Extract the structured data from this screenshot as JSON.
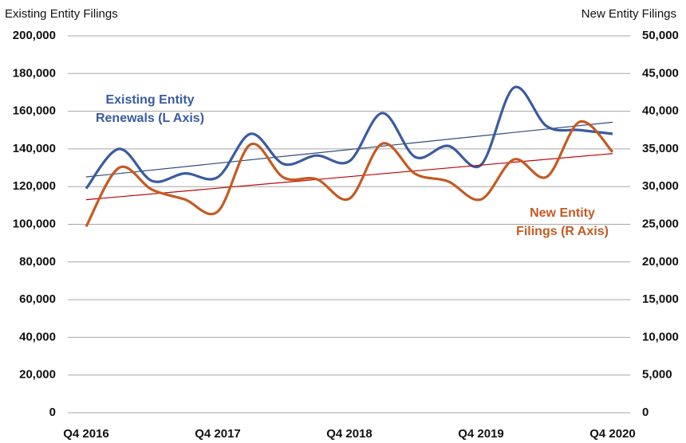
{
  "chart_data": {
    "type": "line",
    "y_axis_title": "Existing Entity Filings",
    "y2_axis_title": "New Entity Filings",
    "categories": [
      "Q4 2016",
      null,
      null,
      null,
      "Q4 2017",
      null,
      null,
      null,
      "Q4 2018",
      null,
      null,
      null,
      "Q4 2019",
      null,
      null,
      null,
      "Q4 2020"
    ],
    "ylim": [
      0,
      200000
    ],
    "yticks": [
      0,
      {
        "value": 20000,
        "label": "20,000"
      },
      {
        "value": 40000,
        "label": "40,000"
      },
      {
        "value": 60000,
        "label": "60,000"
      },
      {
        "value": 80000,
        "label": "80,000"
      },
      {
        "value": 100000,
        "label": "100,000"
      },
      {
        "value": 120000,
        "label": "120,000"
      },
      {
        "value": 140000,
        "label": "140,000"
      },
      {
        "value": 160000,
        "label": "160,000"
      },
      {
        "value": 180000,
        "label": "180,000"
      },
      {
        "value": 200000,
        "label": "200,000"
      }
    ],
    "y2lim": [
      0,
      50000
    ],
    "y2ticks": [
      0,
      {
        "value": 5000,
        "label": "5,000"
      },
      {
        "value": 10000,
        "label": "10,000"
      },
      {
        "value": 15000,
        "label": "15,000"
      },
      {
        "value": 20000,
        "label": "20,000"
      },
      {
        "value": 25000,
        "label": "25,000"
      },
      {
        "value": 30000,
        "label": "30,000"
      },
      {
        "value": 35000,
        "label": "35,000"
      },
      {
        "value": 40000,
        "label": "40,000"
      },
      {
        "value": 45000,
        "label": "45,000"
      },
      {
        "value": 50000,
        "label": "50,000"
      }
    ],
    "grid": true,
    "smooth": true,
    "series": [
      {
        "annotation": [
          "Existing Entity",
          "Renewals (L Axis)"
        ],
        "color": "#3a5ba0",
        "trend": true,
        "trend_color": "#2f4a80",
        "values": [
          119000,
          140000,
          123000,
          127000,
          125000,
          148000,
          132000,
          136500,
          133500,
          159000,
          135700,
          141600,
          131500,
          172500,
          152000,
          150000,
          148000
        ]
      },
      {
        "annotation": [
          "New Entity",
          "Filings (R Axis)"
        ],
        "color": "#c55a21",
        "trend": true,
        "trend_color": "#c00000",
        "axis": "y2",
        "values": [
          24700,
          32500,
          29600,
          28300,
          26700,
          35600,
          31200,
          31000,
          28400,
          35700,
          31700,
          30700,
          28300,
          33600,
          31300,
          38600,
          34600
        ]
      }
    ]
  }
}
